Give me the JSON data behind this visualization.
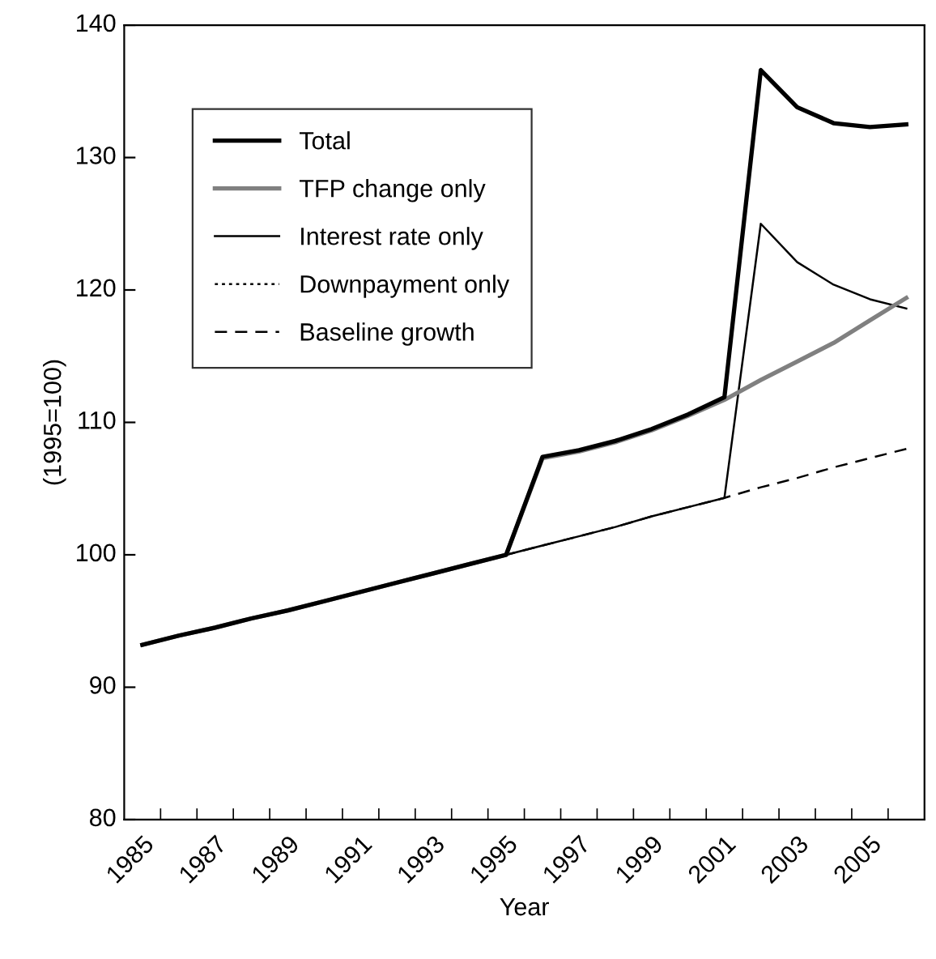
{
  "chart_data": {
    "type": "line",
    "xlabel": "Year",
    "ylabel": "(1995=100)",
    "categories": [
      "1985",
      null,
      "1987",
      null,
      "1989",
      null,
      "1991",
      null,
      "1993",
      null,
      "1995",
      null,
      "1997",
      null,
      "1999",
      null,
      "2001",
      null,
      "2003",
      null,
      "2005",
      null
    ],
    "series": [
      {
        "name": "Total",
        "color": "#000000",
        "line_style": "solid",
        "values": [
          93.2,
          93.9,
          94.5,
          95.2,
          95.8,
          96.5,
          97.2,
          97.9,
          98.6,
          99.3,
          100,
          107.4,
          107.9,
          108.6,
          109.5,
          110.6,
          111.9,
          136.6,
          133.8,
          132.6,
          132.3,
          132.5
        ]
      },
      {
        "name": "TFP change only",
        "color": "#808080",
        "line_style": "solid",
        "values": [
          93.2,
          93.9,
          94.5,
          95.2,
          95.8,
          96.5,
          97.2,
          97.9,
          98.6,
          99.3,
          100,
          107.3,
          107.8,
          108.5,
          109.4,
          110.5,
          111.7,
          113.2,
          114.6,
          116.0,
          117.7,
          119.4
        ]
      },
      {
        "name": "Interest rate only",
        "color": "#000000",
        "line_style": "solid",
        "values": [
          93.2,
          93.9,
          94.5,
          95.2,
          95.8,
          96.5,
          97.2,
          97.9,
          98.6,
          99.3,
          100,
          100.7,
          101.4,
          102.1,
          102.9,
          103.6,
          104.3,
          125.0,
          122.1,
          120.4,
          119.3,
          118.6
        ]
      },
      {
        "name": "Downpayment only",
        "color": "#000000",
        "line_style": "dotted",
        "values": [
          null,
          null,
          null,
          null,
          null,
          null,
          null,
          null,
          null,
          null,
          null,
          null,
          null,
          null,
          null,
          null,
          null,
          null,
          null,
          null,
          null,
          null
        ]
      },
      {
        "name": "Baseline growth",
        "color": "#000000",
        "line_style": "dashed",
        "values": [
          93.2,
          93.9,
          94.5,
          95.2,
          95.8,
          96.5,
          97.2,
          97.9,
          98.6,
          99.3,
          100,
          100.7,
          101.4,
          102.1,
          102.9,
          103.6,
          104.3,
          105.1,
          105.8,
          106.6,
          107.3,
          108.0
        ]
      }
    ],
    "ylim": [
      80,
      140
    ],
    "yticks": [
      80,
      90,
      100,
      110,
      120,
      130,
      140
    ],
    "grid": false,
    "legend": "top left",
    "marker": "none"
  }
}
